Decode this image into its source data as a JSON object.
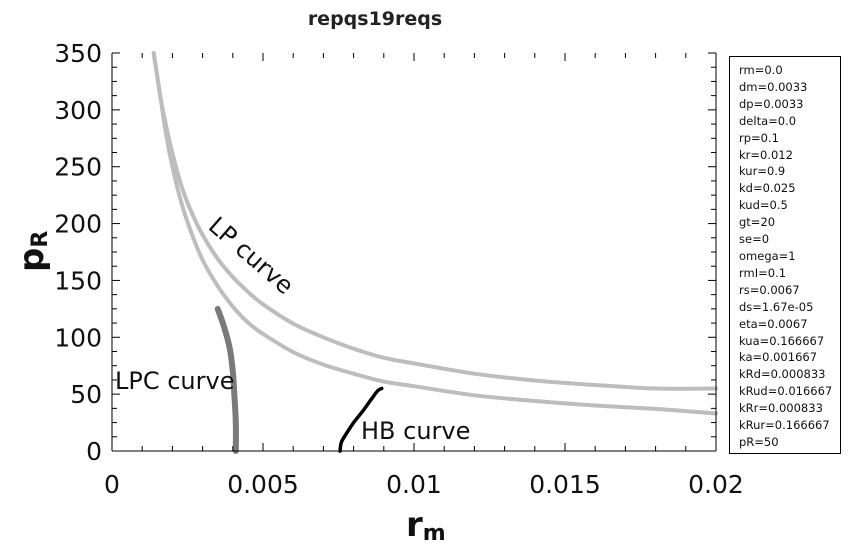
{
  "chart_data": {
    "type": "line",
    "title": "repqs19reqs",
    "xlabel": "r",
    "xlabel_sub": "m",
    "ylabel": "p",
    "ylabel_sub": "R",
    "xlim": [
      0,
      0.02
    ],
    "ylim": [
      0,
      350
    ],
    "x_ticks": [
      "0",
      "0.005",
      "0.01",
      "0.015",
      "0.02"
    ],
    "y_ticks": [
      "0",
      "50",
      "100",
      "150",
      "200",
      "250",
      "300",
      "350"
    ],
    "grid": false,
    "annotations": [
      "LP curve",
      "LPC curve",
      "HB curve"
    ],
    "series": [
      {
        "color": "#bdbdbd",
        "points": [
          [
            0.00138,
            350
          ],
          [
            0.0016,
            312
          ],
          [
            0.0018,
            277
          ],
          [
            0.002,
            250
          ],
          [
            0.0023,
            218
          ],
          [
            0.0026,
            194
          ],
          [
            0.003,
            168
          ],
          [
            0.0035,
            145
          ],
          [
            0.004,
            127
          ],
          [
            0.0045,
            113
          ],
          [
            0.005,
            103
          ],
          [
            0.006,
            87
          ],
          [
            0.007,
            76
          ],
          [
            0.008,
            68
          ],
          [
            0.009,
            61
          ],
          [
            0.01,
            57
          ],
          [
            0.012,
            49
          ],
          [
            0.014,
            44
          ],
          [
            0.016,
            40
          ],
          [
            0.018,
            37
          ],
          [
            0.02,
            33
          ]
        ]
      },
      {
        "color": "#bdbdbd",
        "points": [
          [
            0.00138,
            350
          ],
          [
            0.0016,
            312
          ],
          [
            0.0018,
            285
          ],
          [
            0.002,
            262
          ],
          [
            0.0023,
            233
          ],
          [
            0.0026,
            212
          ],
          [
            0.003,
            190
          ],
          [
            0.0035,
            169
          ],
          [
            0.004,
            153
          ],
          [
            0.0045,
            140
          ],
          [
            0.005,
            129
          ],
          [
            0.006,
            112
          ],
          [
            0.007,
            100
          ],
          [
            0.008,
            90
          ],
          [
            0.009,
            82
          ],
          [
            0.01,
            77
          ],
          [
            0.012,
            68
          ],
          [
            0.014,
            62
          ],
          [
            0.016,
            58
          ],
          [
            0.018,
            55
          ],
          [
            0.02,
            55
          ]
        ]
      },
      {
        "color": "#7a7a7a",
        "points": [
          [
            0.0035,
            125
          ],
          [
            0.0037,
            110
          ],
          [
            0.0039,
            90
          ],
          [
            0.004,
            70
          ],
          [
            0.00405,
            50
          ],
          [
            0.0041,
            25
          ],
          [
            0.0041,
            0
          ]
        ]
      },
      {
        "color": "#000000",
        "points": [
          [
            0.00755,
            0
          ],
          [
            0.0076,
            8
          ],
          [
            0.0078,
            17
          ],
          [
            0.008,
            25
          ],
          [
            0.0083,
            35
          ],
          [
            0.0086,
            46
          ],
          [
            0.0088,
            53
          ],
          [
            0.00893,
            55
          ]
        ]
      }
    ]
  },
  "parameters": [
    "rm=0.0",
    "dm=0.0033",
    "dp=0.0033",
    "delta=0.0",
    "rp=0.1",
    "kr=0.012",
    "kur=0.9",
    "kd=0.025",
    "kud=0.5",
    "gt=20",
    "se=0",
    "omega=1",
    "rmI=0.1",
    "rs=0.0067",
    "ds=1.67e-05",
    "eta=0.0067",
    "kua=0.166667",
    "ka=0.001667",
    "kRd=0.000833",
    "kRud=0.016667",
    "kRr=0.000833",
    "kRur=0.166667",
    "pR=50"
  ]
}
